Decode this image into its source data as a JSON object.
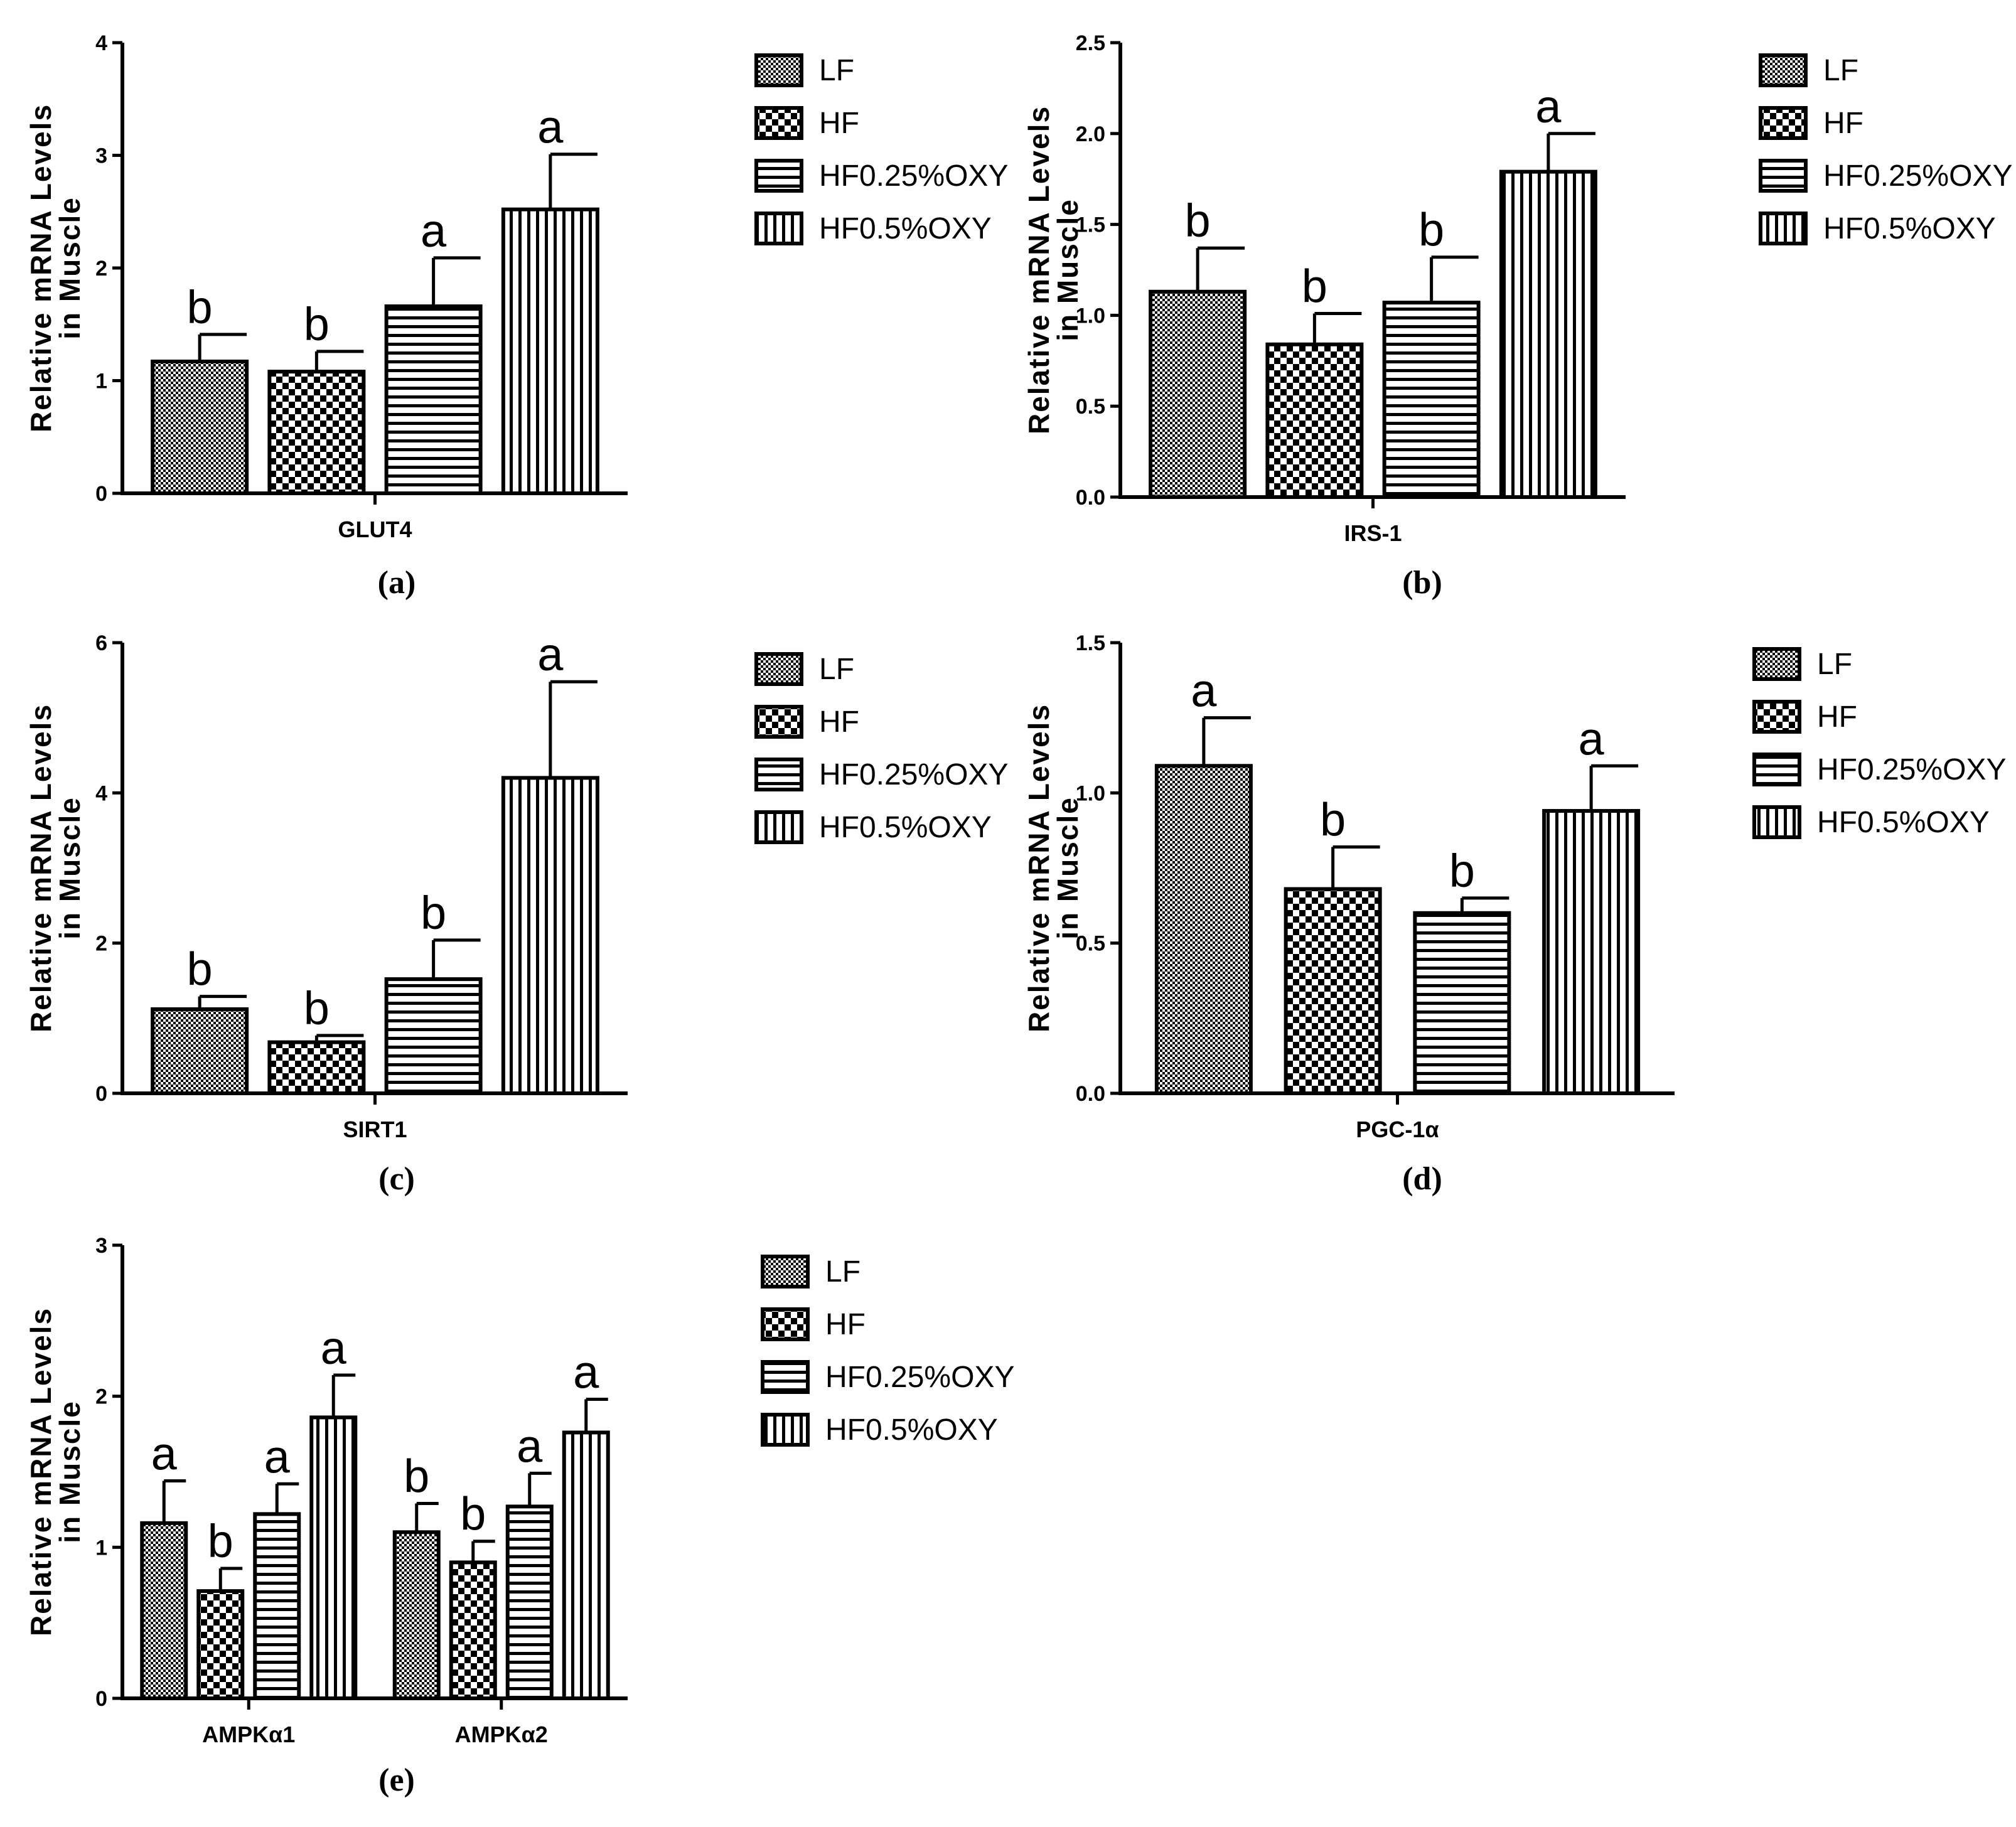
{
  "figure": {
    "groups": [
      "LF",
      "HF",
      "HF0.25%OXY",
      "HF0.5%OXY"
    ],
    "colors": {
      "ink": "#000000",
      "background": "#ffffff"
    },
    "patterns": [
      "fine-checker-pattern",
      "checker-pattern",
      "horizontal-stripes-pattern",
      "vertical-stripes-pattern"
    ]
  },
  "chart_data": [
    {
      "type": "bar",
      "panel_label": "(a)",
      "ylabel_line1": "Relative mRNA Levels",
      "ylabel_line2": "in Muscle",
      "ylim": [
        0,
        4
      ],
      "yticks": [
        "0",
        "1",
        "2",
        "3",
        "4"
      ],
      "categories": [
        "GLUT4"
      ],
      "legend": [
        "LF",
        "HF",
        "HF0.25%OXY",
        "HF0.5%OXY"
      ],
      "series": [
        {
          "name": "LF",
          "values": [
            1.17
          ],
          "errors": [
            0.24
          ],
          "letters": [
            "b"
          ]
        },
        {
          "name": "HF",
          "values": [
            1.08
          ],
          "errors": [
            0.18
          ],
          "letters": [
            "b"
          ]
        },
        {
          "name": "HF0.25%OXY",
          "values": [
            1.66
          ],
          "errors": [
            0.43
          ],
          "letters": [
            "a"
          ]
        },
        {
          "name": "HF0.5%OXY",
          "values": [
            2.52
          ],
          "errors": [
            0.49
          ],
          "letters": [
            "a"
          ]
        }
      ]
    },
    {
      "type": "bar",
      "panel_label": "(b)",
      "ylabel_line1": "Relative mRNA Levels",
      "ylabel_line2": "in Muscle",
      "ylim": [
        0,
        2.5
      ],
      "yticks": [
        "0.0",
        "0.5",
        "1.0",
        "1.5",
        "2.0",
        "2.5"
      ],
      "categories": [
        "IRS-1"
      ],
      "legend": [
        "LF",
        "HF",
        "HF0.25%OXY",
        "HF0.5%OXY"
      ],
      "series": [
        {
          "name": "LF",
          "values": [
            1.13
          ],
          "errors": [
            0.24
          ],
          "letters": [
            "b"
          ]
        },
        {
          "name": "HF",
          "values": [
            0.84
          ],
          "errors": [
            0.17
          ],
          "letters": [
            "b"
          ]
        },
        {
          "name": "HF0.25%OXY",
          "values": [
            1.07
          ],
          "errors": [
            0.25
          ],
          "letters": [
            "b"
          ]
        },
        {
          "name": "HF0.5%OXY",
          "values": [
            1.79
          ],
          "errors": [
            0.21
          ],
          "letters": [
            "a"
          ]
        }
      ]
    },
    {
      "type": "bar",
      "panel_label": "(c)",
      "ylabel_line1": "Relative mRNA Levels",
      "ylabel_line2": "in Muscle",
      "ylim": [
        0,
        6
      ],
      "yticks": [
        "0",
        "2",
        "4",
        "6"
      ],
      "categories": [
        "SIRT1"
      ],
      "legend": [
        "LF",
        "HF",
        "HF0.25%OXY",
        "HF0.5%OXY"
      ],
      "series": [
        {
          "name": "LF",
          "values": [
            1.12
          ],
          "errors": [
            0.17
          ],
          "letters": [
            "b"
          ]
        },
        {
          "name": "HF",
          "values": [
            0.68
          ],
          "errors": [
            0.09
          ],
          "letters": [
            "b"
          ]
        },
        {
          "name": "HF0.25%OXY",
          "values": [
            1.52
          ],
          "errors": [
            0.52
          ],
          "letters": [
            "b"
          ]
        },
        {
          "name": "HF0.5%OXY",
          "values": [
            4.2
          ],
          "errors": [
            1.28
          ],
          "letters": [
            "a"
          ]
        }
      ]
    },
    {
      "type": "bar",
      "panel_label": "(d)",
      "ylabel_line1": "Relative mRNA Levels",
      "ylabel_line2": "in Muscle",
      "ylim": [
        0,
        1.5
      ],
      "yticks": [
        "0.0",
        "0.5",
        "1.0",
        "1.5"
      ],
      "categories": [
        "PGC-1α"
      ],
      "legend": [
        "LF",
        "HF",
        "HF0.25%OXY",
        "HF0.5%OXY"
      ],
      "series": [
        {
          "name": "LF",
          "values": [
            1.09
          ],
          "errors": [
            0.16
          ],
          "letters": [
            "a"
          ]
        },
        {
          "name": "HF",
          "values": [
            0.68
          ],
          "errors": [
            0.14
          ],
          "letters": [
            "b"
          ]
        },
        {
          "name": "HF0.25%OXY",
          "values": [
            0.6
          ],
          "errors": [
            0.05
          ],
          "letters": [
            "b"
          ]
        },
        {
          "name": "HF0.5%OXY",
          "values": [
            0.94
          ],
          "errors": [
            0.15
          ],
          "letters": [
            "a"
          ]
        }
      ]
    },
    {
      "type": "bar",
      "panel_label": "(e)",
      "ylabel_line1": "Relative mRNA Levels",
      "ylabel_line2": "in Muscle",
      "ylim": [
        0,
        3
      ],
      "yticks": [
        "0",
        "1",
        "2",
        "3"
      ],
      "categories": [
        "AMPKα1",
        "AMPKα2"
      ],
      "legend": [
        "LF",
        "HF",
        "HF0.25%OXY",
        "HF0.5%OXY"
      ],
      "series": [
        {
          "name": "LF",
          "values": [
            1.16,
            1.1
          ],
          "errors": [
            0.28,
            0.19
          ],
          "letters": [
            "a",
            "b"
          ]
        },
        {
          "name": "HF",
          "values": [
            0.71,
            0.9
          ],
          "errors": [
            0.15,
            0.14
          ],
          "letters": [
            "b",
            "b"
          ]
        },
        {
          "name": "HF0.25%OXY",
          "values": [
            1.22,
            1.27
          ],
          "errors": [
            0.2,
            0.22
          ],
          "letters": [
            "a",
            "a"
          ]
        },
        {
          "name": "HF0.5%OXY",
          "values": [
            1.86,
            1.76
          ],
          "errors": [
            0.28,
            0.22
          ],
          "letters": [
            "a",
            "a"
          ]
        }
      ]
    }
  ]
}
